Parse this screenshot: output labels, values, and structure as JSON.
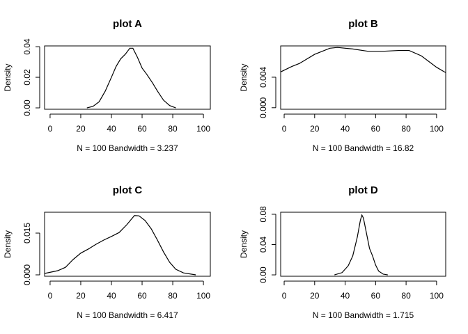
{
  "chart_data": [
    {
      "type": "line",
      "title": "plot A",
      "x_label": "N = 100   Bandwidth = 3.237",
      "y_label": "Density",
      "x": [
        24,
        28,
        32,
        36,
        40,
        43,
        46,
        49,
        52,
        54,
        57,
        60,
        63,
        67,
        70,
        74,
        78,
        82
      ],
      "values": [
        0,
        0.001,
        0.004,
        0.011,
        0.02,
        0.027,
        0.032,
        0.035,
        0.039,
        0.039,
        0.033,
        0.026,
        0.022,
        0.016,
        0.011,
        0.005,
        0.0015,
        0
      ],
      "color": "#000000",
      "xlim": [
        -3.6,
        104.5
      ],
      "ylim": [
        -0.0009,
        0.0405
      ],
      "xticks": [
        0,
        20,
        40,
        60,
        80,
        100
      ],
      "yticks": [
        {
          "value": 0,
          "label": "0.00"
        },
        {
          "value": 0.02,
          "label": "0.02"
        },
        {
          "value": 0.04,
          "label": "0.04"
        }
      ]
    },
    {
      "type": "line",
      "title": "plot B",
      "x_label": "N = 100   Bandwidth = 16.82",
      "y_label": "Density",
      "x": [
        -2.3,
        5,
        10,
        20,
        30,
        35,
        45,
        55,
        65,
        75,
        82,
        90,
        100,
        106
      ],
      "values": [
        0.0047,
        0.0054,
        0.0058,
        0.007,
        0.0078,
        0.0079,
        0.0077,
        0.0074,
        0.0074,
        0.0075,
        0.0075,
        0.0068,
        0.0053,
        0.0046
      ],
      "color": "#000000",
      "xlim": [
        -2.3,
        106
      ],
      "ylim": [
        -0.0002,
        0.0081
      ],
      "xticks": [
        0,
        20,
        40,
        60,
        80,
        100
      ],
      "yticks": [
        {
          "value": 0,
          "label": "0.000"
        },
        {
          "value": 0.004,
          "label": "0.004"
        }
      ]
    },
    {
      "type": "line",
      "title": "plot C",
      "x_label": "N = 100   Bandwidth = 6.417",
      "y_label": "Density",
      "x": [
        -3.6,
        5,
        10,
        15,
        20,
        25,
        30,
        35,
        40,
        45,
        50,
        55,
        58,
        62,
        66,
        70,
        74,
        78,
        82,
        87,
        95
      ],
      "values": [
        0.0005,
        0.0015,
        0.0027,
        0.0055,
        0.0078,
        0.0093,
        0.011,
        0.0125,
        0.0138,
        0.0152,
        0.018,
        0.0213,
        0.0212,
        0.0195,
        0.0165,
        0.0125,
        0.0082,
        0.0045,
        0.002,
        0.0007,
        0
      ],
      "color": "#000000",
      "xlim": [
        -3.6,
        104.5
      ],
      "ylim": [
        -0.0005,
        0.0225
      ],
      "xticks": [
        0,
        20,
        40,
        60,
        80,
        100
      ],
      "yticks": [
        {
          "value": 0,
          "label": "0.000"
        },
        {
          "value": 0.015,
          "label": "0.015"
        }
      ]
    },
    {
      "type": "line",
      "title": "plot D",
      "x_label": "N = 100   Bandwidth = 1.715",
      "y_label": "Density",
      "x": [
        33,
        38,
        42,
        45,
        48,
        50,
        51,
        52,
        54,
        56,
        58,
        60,
        62,
        65,
        68
      ],
      "values": [
        0,
        0.003,
        0.012,
        0.025,
        0.05,
        0.072,
        0.079,
        0.075,
        0.055,
        0.035,
        0.025,
        0.013,
        0.005,
        0.001,
        0
      ],
      "color": "#000000",
      "xlim": [
        -2.3,
        106
      ],
      "ylim": [
        -0.0018,
        0.0827
      ],
      "xticks": [
        0,
        20,
        40,
        60,
        80,
        100
      ],
      "yticks": [
        {
          "value": 0,
          "label": "0.00"
        },
        {
          "value": 0.04,
          "label": "0.04"
        },
        {
          "value": 0.08,
          "label": "0.08"
        }
      ]
    }
  ]
}
